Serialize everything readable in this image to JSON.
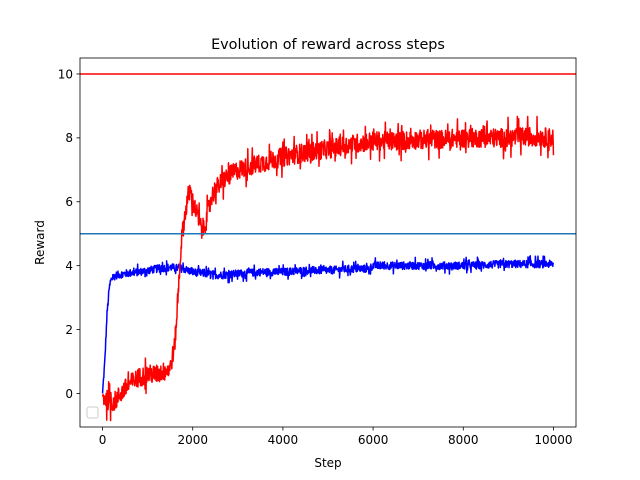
{
  "chart_data": {
    "type": "line",
    "title": "Evolution of reward across steps",
    "xlabel": "Step",
    "ylabel": "Reward",
    "xlim": [
      -500,
      10500
    ],
    "ylim": [
      -1.05,
      10.5
    ],
    "x_ticks": [
      0,
      2000,
      4000,
      6000,
      8000,
      10000
    ],
    "x_tick_labels": [
      "0",
      "2000",
      "4000",
      "6000",
      "8000",
      "10000"
    ],
    "y_ticks": [
      0,
      2,
      4,
      6,
      8,
      10
    ],
    "y_tick_labels": [
      "0",
      "2",
      "4",
      "6",
      "8",
      "10"
    ],
    "grid": false,
    "legend": {
      "placement": "lower-left",
      "entries": []
    },
    "hlines": [
      {
        "y": 10,
        "color": "#ff0000"
      },
      {
        "y": 5,
        "color": "#1f77b4"
      }
    ],
    "series": [
      {
        "color": "#0000ff",
        "noise": 0.12,
        "x": [
          0,
          50,
          100,
          150,
          200,
          300,
          500,
          800,
          1000,
          1200,
          1500,
          1800,
          2000,
          2300,
          2600,
          3000,
          3500,
          4000,
          4500,
          5000,
          5500,
          5900,
          6000,
          6500,
          7000,
          8000,
          9000,
          10000
        ],
        "y": [
          0.0,
          1.0,
          2.5,
          3.3,
          3.6,
          3.7,
          3.75,
          3.8,
          3.85,
          3.9,
          3.95,
          3.9,
          3.8,
          3.75,
          3.7,
          3.75,
          3.8,
          3.8,
          3.85,
          3.85,
          3.9,
          3.9,
          4.0,
          4.0,
          4.0,
          4.0,
          4.05,
          4.05
        ]
      },
      {
        "color": "#ff0000",
        "noise": 0.3,
        "x": [
          0,
          200,
          300,
          400,
          600,
          800,
          1000,
          1200,
          1400,
          1500,
          1600,
          1650,
          1700,
          1750,
          1800,
          1850,
          1900,
          1950,
          2000,
          2100,
          2200,
          2300,
          2400,
          2500,
          2700,
          3000,
          3500,
          4000,
          4500,
          5000,
          5500,
          6000,
          6500,
          7000,
          7500,
          8000,
          8500,
          9000,
          9500,
          10000
        ],
        "y": [
          -0.1,
          -0.3,
          -0.2,
          0.0,
          0.3,
          0.5,
          0.6,
          0.6,
          0.7,
          0.8,
          1.5,
          2.5,
          3.7,
          4.8,
          5.3,
          5.8,
          6.2,
          6.3,
          6.0,
          5.6,
          5.1,
          5.4,
          6.1,
          6.4,
          6.7,
          7.0,
          7.2,
          7.4,
          7.55,
          7.65,
          7.8,
          7.9,
          7.9,
          7.95,
          7.95,
          8.0,
          8.0,
          8.0,
          8.05,
          8.0
        ]
      }
    ]
  }
}
